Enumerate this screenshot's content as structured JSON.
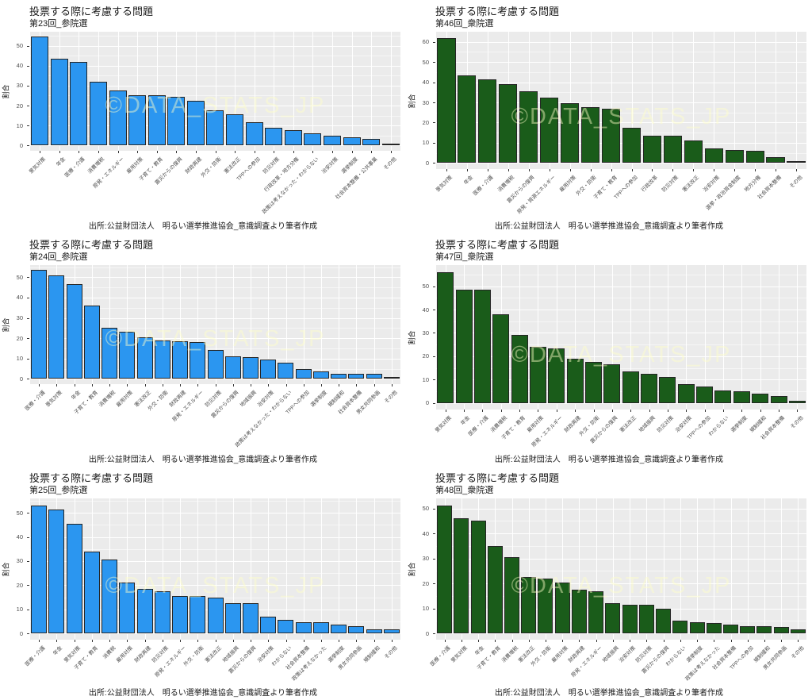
{
  "watermark": "©DATA_STATS_JP",
  "caption": "出所:公益財団法人　明るい選挙推進協会_意識調査より筆者作成",
  "colors": {
    "blue_bar": "#2B96F0",
    "green_bar": "#1A5C1A",
    "panel_bg": "#EBEBEB",
    "grid": "#FFFFFF",
    "axis_text": "#4D4D4D",
    "title_text": "#1A1A1A",
    "watermark_color": "rgba(255,255,200,0.45)"
  },
  "chart_data": [
    {
      "type": "bar",
      "title": "投票する際に考慮する問題",
      "subtitle": "第23回_参院選",
      "ylabel": "割合",
      "bar_color": "#2B96F0",
      "yticks": [
        0,
        10,
        20,
        30,
        40,
        50
      ],
      "ylim": [
        0,
        57
      ],
      "grid": true,
      "categories": [
        "景気対策",
        "年金",
        "医療・介護",
        "消費増税",
        "原発・エネルギー",
        "雇用対策",
        "子育て・教育",
        "震災からの復興",
        "財政再建",
        "外交・防衛",
        "憲法改正",
        "TPPへの参加",
        "防災対策",
        "行政改革・地方分権",
        "政策は考えなかった・わからない",
        "治安対策",
        "選挙制度",
        "社会資本整備・公共事業",
        "その他"
      ],
      "values": [
        54.5,
        43.5,
        42,
        32,
        27.5,
        25,
        25,
        24.5,
        22.5,
        17.5,
        15.5,
        11.5,
        9,
        7.5,
        6,
        5,
        4,
        3.5,
        1
      ]
    },
    {
      "type": "bar",
      "title": "投票する際に考慮する問題",
      "subtitle": "第46回_衆院選",
      "ylabel": "割合",
      "bar_color": "#1A5C1A",
      "yticks": [
        0,
        10,
        20,
        30,
        40,
        50,
        60
      ],
      "ylim": [
        0,
        65
      ],
      "grid": true,
      "categories": [
        "景気対策",
        "年金",
        "医療・介護",
        "消費増税",
        "震災からの復興",
        "原発・資源エネルギー",
        "雇用対策",
        "外交・防衛",
        "子育て・教育",
        "TPPへの参加",
        "行政改革",
        "防災対策",
        "憲法改正",
        "治安対策",
        "選挙・政治資金制度",
        "地方分権",
        "社会資本整備",
        "その他"
      ],
      "values": [
        62,
        43.5,
        41.5,
        39,
        35.5,
        32.5,
        29.5,
        27.5,
        27,
        17.5,
        13.5,
        13.5,
        11,
        7,
        6.5,
        6,
        3,
        1
      ]
    },
    {
      "type": "bar",
      "title": "投票する際に考慮する問題",
      "subtitle": "第24回_参院選",
      "ylabel": "割合",
      "bar_color": "#2B96F0",
      "yticks": [
        0,
        10,
        20,
        30,
        40,
        50
      ],
      "ylim": [
        0,
        56
      ],
      "grid": true,
      "categories": [
        "医療・介護",
        "景気対策",
        "年金",
        "子育て・教育",
        "消費増税",
        "雇用対策",
        "憲法改正",
        "外交・防衛",
        "財政再建",
        "原発・エネルギー",
        "防災対策",
        "震災からの復興",
        "地域振興",
        "治安対策",
        "政策は考えなかった・わからない",
        "TPPへの参加",
        "選挙制度",
        "規制緩和",
        "社会資本整備",
        "男女共同参画",
        "その他"
      ],
      "values": [
        53.5,
        51,
        46.5,
        36,
        25,
        23,
        20.5,
        19,
        18.5,
        18,
        14,
        11,
        10.5,
        9.5,
        8,
        5,
        3.5,
        2.5,
        2.5,
        2.5,
        0.5
      ]
    },
    {
      "type": "bar",
      "title": "投票する際に考慮する問題",
      "subtitle": "第47回_衆院選",
      "ylabel": "割合",
      "bar_color": "#1A5C1A",
      "yticks": [
        0,
        10,
        20,
        30,
        40,
        50
      ],
      "ylim": [
        0,
        59
      ],
      "grid": true,
      "categories": [
        "景気対策",
        "年金",
        "医療・介護",
        "消費増税",
        "子育て・教育",
        "雇用対策",
        "原発・エネルギー",
        "財政再建",
        "外交・防衛",
        "震災からの復興",
        "憲法改正",
        "地域振興",
        "防災対策",
        "治安対策",
        "TPPへの参加",
        "わからない",
        "選挙制度",
        "規制緩和",
        "社会資本整備",
        "その他"
      ],
      "values": [
        56,
        48.5,
        48.5,
        38,
        29,
        24,
        23.5,
        19,
        17.5,
        16.5,
        13.5,
        12.5,
        11,
        8,
        7,
        5.5,
        5,
        4,
        3,
        1
      ]
    },
    {
      "type": "bar",
      "title": "投票する際に考慮する問題",
      "subtitle": "第25回_参院選",
      "ylabel": "割合",
      "bar_color": "#2B96F0",
      "yticks": [
        0,
        10,
        20,
        30,
        40,
        50
      ],
      "ylim": [
        0,
        56
      ],
      "grid": true,
      "categories": [
        "医療・介護",
        "年金",
        "景気対策",
        "子育て・教育",
        "消費税",
        "雇用対策",
        "財政再建",
        "防災対策",
        "原発・エネルギー",
        "外交・防衛",
        "憲法改正",
        "地域振興",
        "震災からの復興",
        "治安対策",
        "わからない",
        "社会資本整備",
        "政策は考えなかった",
        "選挙制度",
        "男女共同参画",
        "規制緩和",
        "その他"
      ],
      "values": [
        53,
        51.5,
        45.5,
        34,
        30.5,
        21,
        18.5,
        17.5,
        15.5,
        15.5,
        15,
        12.5,
        12.5,
        7,
        5.5,
        4.5,
        4.5,
        3.5,
        3,
        1.5,
        1.5
      ]
    },
    {
      "type": "bar",
      "title": "投票する際に考慮する問題",
      "subtitle": "第48回_衆院選",
      "ylabel": "割合",
      "bar_color": "#1A5C1A",
      "yticks": [
        0,
        10,
        20,
        30,
        40,
        50
      ],
      "ylim": [
        0,
        54
      ],
      "grid": true,
      "categories": [
        "医療・介護",
        "景気対策",
        "年金",
        "子育て・教育",
        "消費増税",
        "憲法改正",
        "外交・防衛",
        "雇用対策",
        "財政再建",
        "原発・エネルギー",
        "地域振興",
        "治安対策",
        "防災対策",
        "震災からの復興",
        "わからない",
        "選挙制度",
        "政策は考えなかった",
        "社会資本整備",
        "TPPへの参加",
        "規制緩和",
        "男女共同参画",
        "その他"
      ],
      "values": [
        51,
        46,
        45,
        35,
        30.5,
        22.5,
        22,
        20.5,
        17.5,
        17,
        12,
        11.5,
        11.5,
        10,
        5,
        4.5,
        4,
        3.5,
        3,
        3,
        2.5,
        1.5
      ]
    }
  ]
}
